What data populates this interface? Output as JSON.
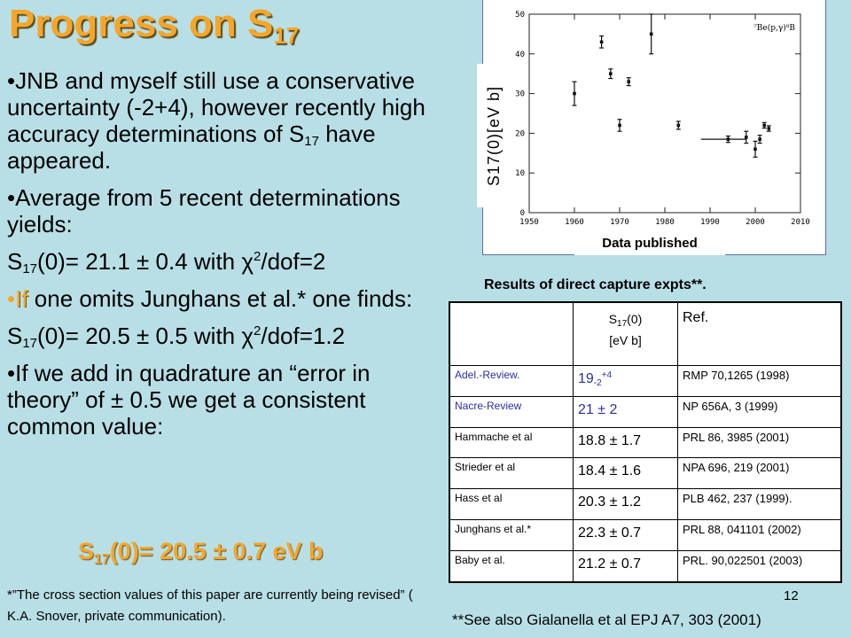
{
  "title": {
    "main": "Progress on S",
    "sub": "17"
  },
  "bullets": {
    "b1": {
      "line": "•JNB and myself still  use a conservative uncertainty (-2+4), however recently high accuracy determinations of S",
      "sub": "17",
      "end": " have appeared."
    },
    "b2": "•Average  from 5 recent determinations   yields:",
    "eq1": {
      "pre": "S",
      "sub": "17",
      "mid": "(0)= 21.1 ± 0.4 with ",
      "chi": "χ",
      "sup": "2",
      "end": "/dof=2"
    },
    "b3": {
      "bullet": "•",
      "if_word": "If",
      "rest": " one omits Junghans et al.* one finds:"
    },
    "eq2": {
      "pre": "S",
      "sub": "17",
      "mid": "(0)= 20.5 ± 0.5 with ",
      "chi": "χ",
      "sup": "2",
      "end": "/dof=1.2"
    },
    "b4": "•If we add in quadrature an “error in theory” of  ± 0.5 we get a consistent common value:"
  },
  "final_value": {
    "pre": "S",
    "sub": "17",
    "end": "(0)= 20.5 ± 0.7 eV b"
  },
  "footnote": "*”The cross section values of this paper are currently being revised” ( K.A. Snover, private communication).",
  "plot": {
    "ylabel": "S17(0)[eV b]",
    "caption": "Data published",
    "reaction_label": "⁷Be(p,γ)⁸B",
    "y_ticks": [
      "0",
      "10",
      "20",
      "30",
      "40",
      "50"
    ],
    "x_ticks": [
      "1950",
      "1960",
      "1970",
      "1980",
      "1990",
      "2000",
      "2010"
    ]
  },
  "chart_data": {
    "type": "scatter",
    "title": "",
    "xlabel": "",
    "ylabel": "S17(0)[eV b]",
    "xlim": [
      1950,
      2010
    ],
    "ylim": [
      0,
      50
    ],
    "points": [
      {
        "x": 1960,
        "y": 30,
        "err": 3
      },
      {
        "x": 1966,
        "y": 43,
        "err": 1.5
      },
      {
        "x": 1968,
        "y": 35,
        "err": 1.2
      },
      {
        "x": 1970,
        "y": 22,
        "err": 1.5
      },
      {
        "x": 1972,
        "y": 33,
        "err": 1
      },
      {
        "x": 1977,
        "y": 45,
        "err": 5
      },
      {
        "x": 1983,
        "y": 22,
        "err": 1
      },
      {
        "x": 1994,
        "y": 18.5,
        "err": 0.8
      },
      {
        "x": 1998,
        "y": 19,
        "err": 1.5
      },
      {
        "x": 2000,
        "y": 16,
        "err": 2
      },
      {
        "x": 2001,
        "y": 18.5,
        "err": 1
      },
      {
        "x": 2002,
        "y": 22,
        "err": 0.7
      },
      {
        "x": 2003,
        "y": 21.2,
        "err": 0.7
      }
    ],
    "horizontal_line": {
      "x_from": 1988,
      "x_to": 1998,
      "y": 18.5
    }
  },
  "results": {
    "title": "Results of direct capture expts**.",
    "header": {
      "s_pre": "S",
      "s_sub": "17",
      "s_end": "(0)",
      "unit": "[eV b]",
      "ref": "Ref."
    },
    "rows": [
      {
        "name": "Adel.-Review.",
        "value": "19",
        "sub": "-2",
        "sup": "+4",
        "ref": "RMP 70,1265 (1998)"
      },
      {
        "name": "Nacre-Review",
        "value": "21 ± 2",
        "ref": "NP 656A, 3 (1999)"
      },
      {
        "name": "Hammache et al",
        "value": "18.8 ± 1.7",
        "ref": "PRL 86, 3985 (2001)"
      },
      {
        "name": "Strieder et al",
        "value": "18.4 ± 1.6",
        "ref": "NPA 696, 219 (2001)"
      },
      {
        "name": "Hass et al",
        "value": "20.3 ± 1.2",
        "ref": "PLB 462, 237 (1999)."
      },
      {
        "name": "Junghans et al.*",
        "value": "22.3 ± 0.7",
        "ref": "PRL 88, 041101 (2002)"
      },
      {
        "name": "Baby et al.",
        "value": "21.2 ± 0.7",
        "ref": "PRL. 90,022501 (2003)"
      }
    ]
  },
  "slide_number": "12",
  "see_also": "**See also Gialanella et al EPJ A7, 303 (2001)"
}
